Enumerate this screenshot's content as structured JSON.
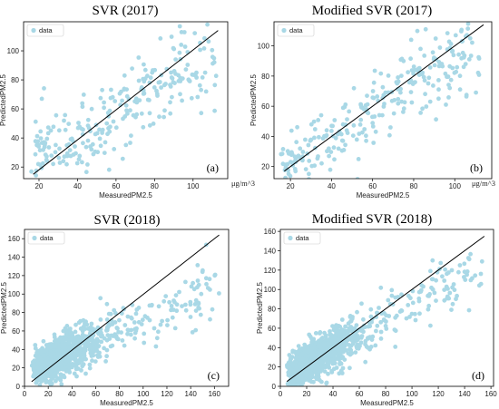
{
  "chart_data": [
    {
      "type": "scatter",
      "title": "SVR (2017)",
      "xlabel": "MeasuredPM2.5",
      "ylabel": "PredictedPM2.5",
      "panel_label": "(a)",
      "unit_label": "μg/m^3",
      "legend": [
        "data"
      ],
      "xlim": [
        12,
        118
      ],
      "ylim": [
        12,
        120
      ],
      "xticks": [
        20,
        40,
        60,
        80,
        100
      ],
      "yticks": [
        20,
        40,
        60,
        80,
        100
      ],
      "identity_line": [
        [
          17,
          15
        ],
        [
          113,
          114
        ]
      ],
      "cloud": {
        "xmin": 16,
        "xmax": 112,
        "center_slope": 0.72,
        "center_intercept": 14,
        "spread": 11,
        "count": 260,
        "seed": 11
      },
      "point_color": "#a9d8e6",
      "line_color": "#000000"
    },
    {
      "type": "scatter",
      "title": "Modified SVR (2017)",
      "xlabel": "MeasuredPM2.5",
      "ylabel": "PredictedPM2.5",
      "panel_label": "(b)",
      "unit_label": "μg/m^3",
      "legend": [
        "data"
      ],
      "xlim": [
        12,
        118
      ],
      "ylim": [
        12,
        116
      ],
      "xticks": [
        20,
        40,
        60,
        80,
        100
      ],
      "yticks": [
        20,
        40,
        60,
        80,
        100
      ],
      "identity_line": [
        [
          17,
          17
        ],
        [
          114,
          114
        ]
      ],
      "cloud": {
        "xmin": 15,
        "xmax": 112,
        "center_slope": 0.86,
        "center_intercept": 7,
        "spread": 8,
        "count": 280,
        "seed": 23
      },
      "point_color": "#a9d8e6",
      "line_color": "#000000"
    },
    {
      "type": "scatter",
      "title": "SVR (2018)",
      "xlabel": "MeasuredPM2.5",
      "ylabel": "PredictedPM2.5",
      "panel_label": "(c)",
      "legend": [
        "data"
      ],
      "xlim": [
        0,
        172
      ],
      "ylim": [
        0,
        170
      ],
      "xticks": [
        0,
        20,
        40,
        60,
        80,
        100,
        120,
        140,
        160
      ],
      "yticks": [
        0,
        20,
        40,
        60,
        80,
        100,
        120,
        140,
        160
      ],
      "identity_line": [
        [
          6,
          5
        ],
        [
          164,
          164
        ]
      ],
      "cloud": {
        "xmin": 6,
        "xmax": 165,
        "center_slope": 0.6,
        "center_intercept": 14,
        "spread": 9,
        "count": 1100,
        "seed": 37,
        "dense_max": 60
      },
      "point_color": "#a9d8e6",
      "line_color": "#000000"
    },
    {
      "type": "scatter",
      "title": "Modified SVR (2018)",
      "xlabel": "MeasuredPM2.5",
      "ylabel": "PredictedPM2.5",
      "panel_label": "(d)",
      "legend": [
        "data"
      ],
      "xlim": [
        0,
        162
      ],
      "ylim": [
        0,
        162
      ],
      "xticks": [
        0,
        20,
        40,
        60,
        80,
        100,
        120,
        140,
        160
      ],
      "yticks": [
        0,
        20,
        40,
        60,
        80,
        100,
        120,
        140,
        160
      ],
      "identity_line": [
        [
          5,
          5
        ],
        [
          155,
          155
        ]
      ],
      "cloud": {
        "xmin": 5,
        "xmax": 155,
        "center_slope": 0.78,
        "center_intercept": 8,
        "spread": 9,
        "count": 1100,
        "seed": 53,
        "dense_max": 60
      },
      "point_color": "#a9d8e6",
      "line_color": "#000000"
    }
  ]
}
